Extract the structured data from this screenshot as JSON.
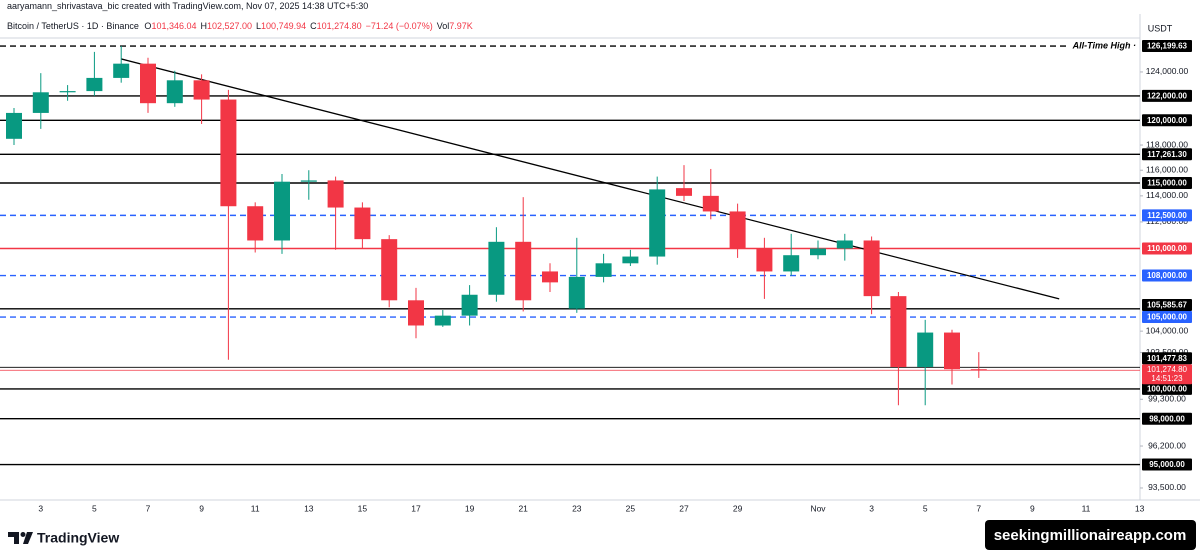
{
  "header": {
    "credit": "aaryamann_shrivastava_bic created with TradingView.com, Nov 07, 2025 14:38 UTC+5:30",
    "symbol": "Bitcoin / TetherUS · 1D · Binance",
    "ohlc": [
      {
        "key": "O",
        "value": "101,346.04"
      },
      {
        "key": "H",
        "value": "102,527.00"
      },
      {
        "key": "L",
        "value": "100,749.94"
      },
      {
        "key": "C",
        "value": "101,274.80"
      }
    ],
    "change": "−71.24 (−0.07%)",
    "volume": {
      "key": "Vol",
      "value": "7.97K"
    }
  },
  "chart_data": {
    "type": "candlestick",
    "currency": "USDT",
    "categories": [
      null,
      "3",
      null,
      "5",
      null,
      "7",
      null,
      "9",
      null,
      "11",
      null,
      "13",
      null,
      "15",
      null,
      "17",
      null,
      "19",
      null,
      "21",
      null,
      "23",
      null,
      "25",
      null,
      "27",
      null,
      "29",
      null,
      null,
      "Nov",
      null,
      "3",
      null,
      "5",
      null,
      "7",
      null,
      "9",
      null,
      "11",
      null,
      "13"
    ],
    "open": [
      118500,
      120600,
      122300,
      122400,
      123500,
      124700,
      121400,
      123300,
      121700,
      113200,
      110600,
      115100,
      115200,
      113100,
      110700,
      106200,
      104400,
      105100,
      106600,
      110500,
      108300,
      105600,
      107900,
      108900,
      109400,
      114600,
      114000,
      112800,
      110000,
      108300,
      109500,
      110000,
      110600,
      106500,
      101500,
      103900,
      101346.04,
      null,
      null,
      null,
      null,
      null,
      null
    ],
    "high": [
      121000,
      123900,
      122900,
      125700,
      126199.63,
      125200,
      124100,
      123800,
      122500,
      113500,
      115700,
      116000,
      115500,
      113500,
      111000,
      107100,
      105500,
      107300,
      111600,
      113900,
      108900,
      110800,
      109600,
      109900,
      115500,
      116400,
      116100,
      113400,
      110800,
      111100,
      110600,
      111100,
      110900,
      106800,
      104800,
      104100,
      102527.0,
      null,
      null,
      null,
      null,
      null,
      null
    ],
    "low": [
      118000,
      119300,
      121600,
      122000,
      123100,
      120600,
      121100,
      119700,
      102000,
      109700,
      109600,
      113700,
      109900,
      110000,
      105700,
      103500,
      104300,
      104400,
      106100,
      105400,
      106800,
      105300,
      107500,
      108700,
      108800,
      113600,
      112200,
      109300,
      106300,
      108000,
      109200,
      109100,
      105200,
      98900,
      98900,
      100300,
      100749.94,
      null,
      null,
      null,
      null,
      null,
      null
    ],
    "close": [
      120600,
      122300,
      122400,
      123500,
      124700,
      121400,
      123300,
      121700,
      113200,
      110600,
      115100,
      115200,
      113100,
      110700,
      106200,
      104400,
      105100,
      106600,
      110500,
      106200,
      107500,
      107900,
      108900,
      109400,
      114500,
      114000,
      112800,
      110000,
      108300,
      109500,
      110000,
      110600,
      106500,
      101500,
      103900,
      101346.04,
      101274.8,
      null,
      null,
      null,
      null,
      null,
      null
    ],
    "up_color": "#089981",
    "down_color": "#f23645",
    "log_scale": true,
    "grid": false,
    "ylim": [
      92740,
      128450
    ],
    "yticks": [
      {
        "value": 93500,
        "label": "93,500.00"
      },
      {
        "value": 96200,
        "label": "96,200.00"
      },
      {
        "value": 99300,
        "label": "99,300.00"
      },
      {
        "value": 102500,
        "label": "102,500.00"
      },
      {
        "value": 104000,
        "label": "104,000.00"
      },
      {
        "value": 112000,
        "label": "112,000.00"
      },
      {
        "value": 114000,
        "label": "114,000.00"
      },
      {
        "value": 116000,
        "label": "116,000.00"
      },
      {
        "value": 118000,
        "label": "118,000.00"
      },
      {
        "value": 124000,
        "label": "124,000.00"
      }
    ],
    "levels": [
      {
        "value": 126199.63,
        "label": "126,199.63",
        "color": "#000000",
        "style": "dashed",
        "annotation": "All-Time High ·"
      },
      {
        "value": 122000,
        "label": "122,000.00",
        "color": "#000000",
        "style": "solid"
      },
      {
        "value": 120000,
        "label": "120,000.00",
        "color": "#000000",
        "style": "solid"
      },
      {
        "value": 117261.3,
        "label": "117,261.30",
        "color": "#000000",
        "style": "solid"
      },
      {
        "value": 115000,
        "label": "115,000.00",
        "color": "#000000",
        "style": "solid"
      },
      {
        "value": 112500,
        "label": "112,500.00",
        "color": "#2962ff",
        "style": "dashed"
      },
      {
        "value": 110000,
        "label": "110,000.00",
        "color": "#f23645",
        "style": "solid"
      },
      {
        "value": 108000,
        "label": "108,000.00",
        "color": "#2962ff",
        "style": "dashed"
      },
      {
        "value": 105585.67,
        "label": "105,585.67",
        "color": "#000000",
        "style": "solid"
      },
      {
        "value": 105000,
        "label": "105,000.00",
        "color": "#2962ff",
        "style": "dashed"
      },
      {
        "value": 101477.83,
        "label": "101,477.83",
        "color": "#000000",
        "style": "thin"
      },
      {
        "value": 100000,
        "label": "100,000.00",
        "color": "#000000",
        "style": "solid"
      },
      {
        "value": 98000,
        "label": "98,000.00",
        "color": "#000000",
        "style": "solid"
      },
      {
        "value": 95000,
        "label": "95,000.00",
        "color": "#000000",
        "style": "solid"
      }
    ],
    "last_price": {
      "value": 101274.8,
      "label": "101,274.80",
      "countdown": "14:51:23",
      "color": "#f23645"
    },
    "trendline": {
      "from": {
        "index": 4,
        "value": 125100
      },
      "to": {
        "index": 39,
        "value": 106300
      },
      "color": "#000000"
    }
  },
  "footer": {
    "brand": "TradingView",
    "watermark": "seekingmillionaireapp.com"
  }
}
